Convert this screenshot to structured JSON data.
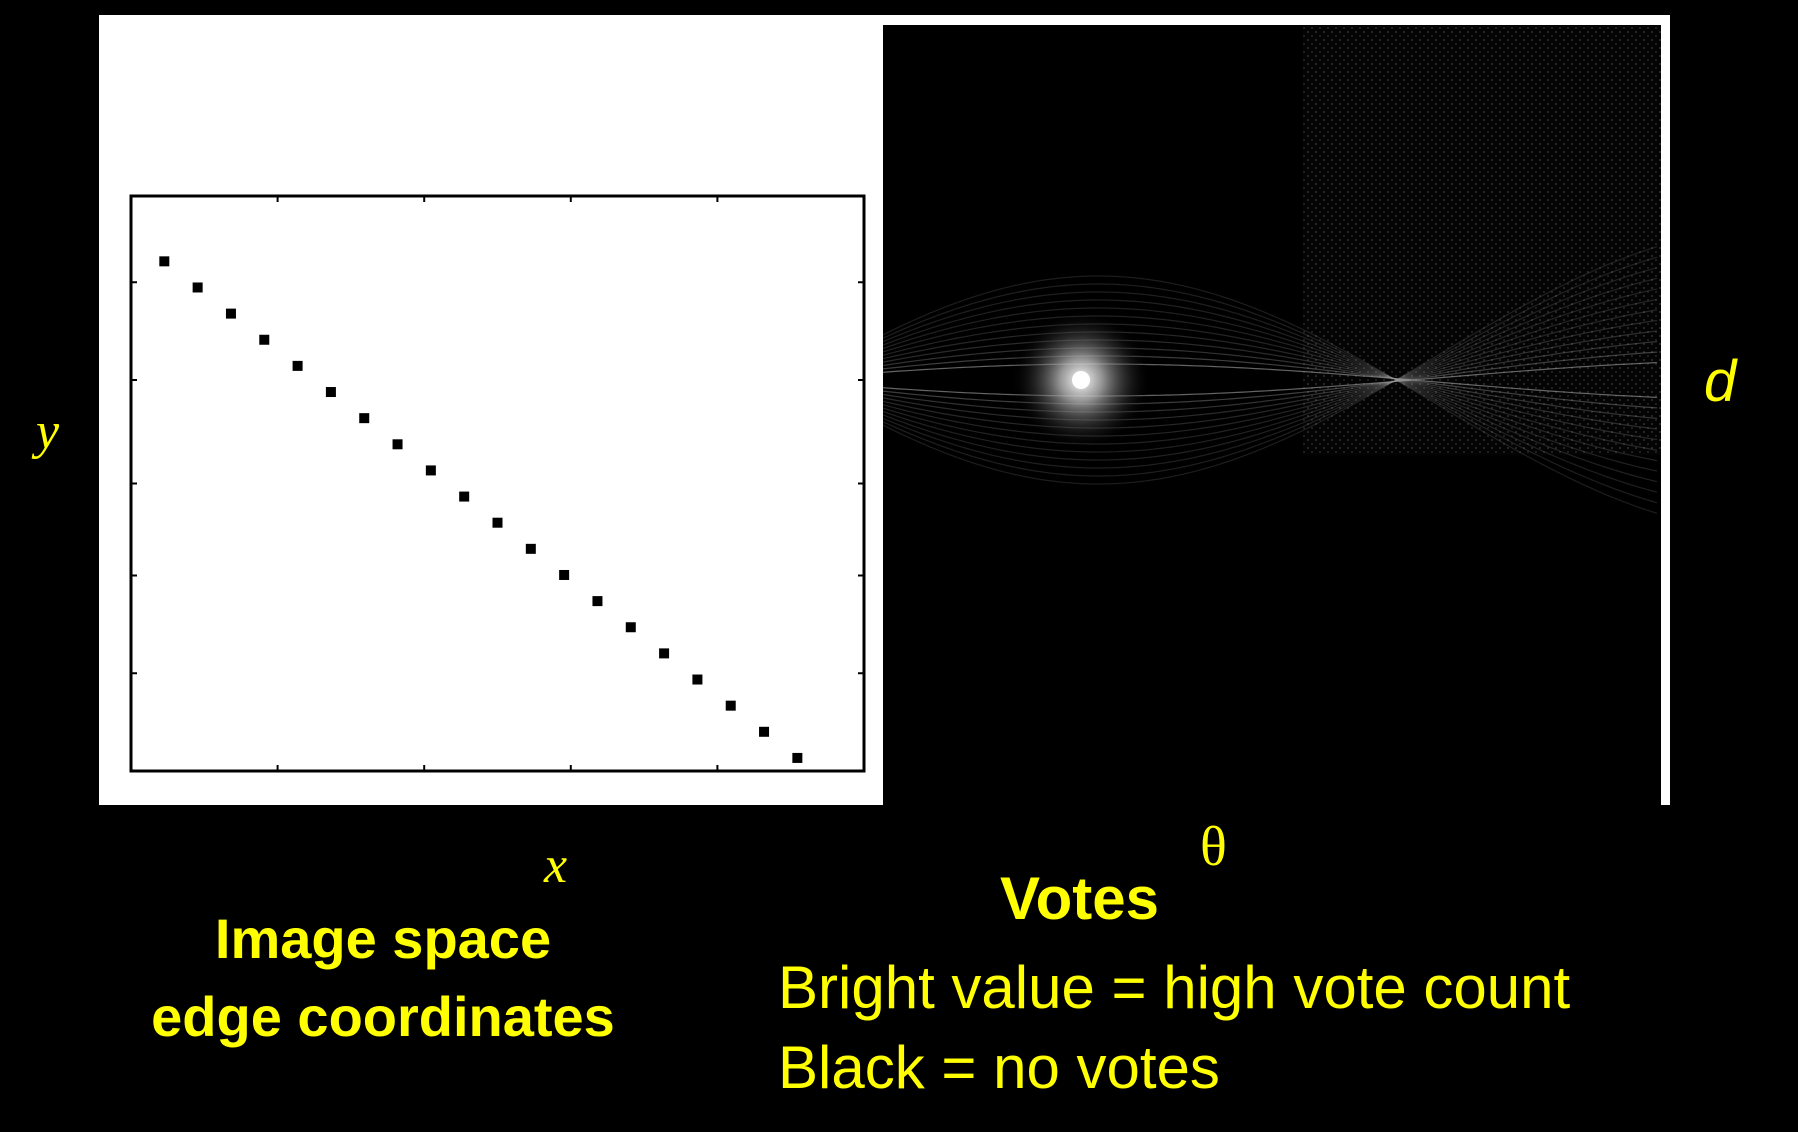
{
  "image_space": {
    "x_label": "x",
    "y_label": "y",
    "caption_line1": "Image space",
    "caption_line2": "edge coordinates",
    "points": [
      {
        "x": 1,
        "y": 19.5
      },
      {
        "x": 2,
        "y": 18.5
      },
      {
        "x": 3,
        "y": 17.5
      },
      {
        "x": 4,
        "y": 16.5
      },
      {
        "x": 5,
        "y": 15.5
      },
      {
        "x": 6,
        "y": 14.5
      },
      {
        "x": 7,
        "y": 13.5
      },
      {
        "x": 8,
        "y": 12.5
      },
      {
        "x": 9,
        "y": 11.5
      },
      {
        "x": 10,
        "y": 10.5
      },
      {
        "x": 11,
        "y": 9.5
      },
      {
        "x": 12,
        "y": 8.5
      },
      {
        "x": 13,
        "y": 7.5
      },
      {
        "x": 14,
        "y": 6.5
      },
      {
        "x": 15,
        "y": 5.5
      },
      {
        "x": 16,
        "y": 4.5
      },
      {
        "x": 17,
        "y": 3.5
      },
      {
        "x": 18,
        "y": 2.5
      },
      {
        "x": 19,
        "y": 1.5
      },
      {
        "x": 20,
        "y": 0.5
      }
    ],
    "x_range": [
      0,
      22
    ],
    "y_range": [
      0,
      22
    ]
  },
  "hough_space": {
    "x_label": "θ",
    "y_label": "d",
    "title": "Votes",
    "legend_line1": "Bright value = high vote count",
    "legend_line2": "Black = no  votes"
  }
}
